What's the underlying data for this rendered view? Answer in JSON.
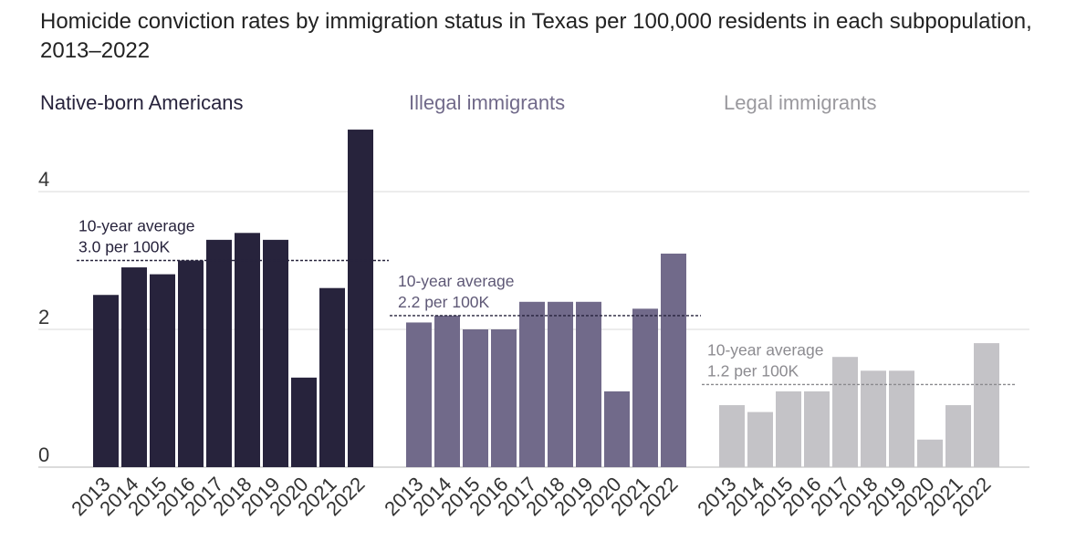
{
  "title": "Homicide conviction rates by immigration status in Texas per 100,000 residents in each subpopulation, 2013–2022",
  "chart_data": {
    "type": "bar",
    "title": "Homicide conviction rates by immigration status in Texas per 100,000 residents in each subpopulation, 2013–2022",
    "categories": [
      "2013",
      "2014",
      "2015",
      "2016",
      "2017",
      "2018",
      "2019",
      "2020",
      "2021",
      "2022"
    ],
    "yticks": [
      0,
      2,
      4
    ],
    "ylim": [
      0,
      5.0
    ],
    "grid": true,
    "panels": [
      {
        "name": "Native-born Americans",
        "color": "#27233c",
        "values": [
          2.5,
          2.9,
          2.8,
          3.0,
          3.3,
          3.4,
          3.3,
          1.3,
          2.6,
          4.9
        ],
        "average": {
          "value": 3.0,
          "line1": "10-year average",
          "line2": "3.0 per 100K"
        }
      },
      {
        "name": "Illegal immigrants",
        "color": "#716a8a",
        "values": [
          2.1,
          2.2,
          2.0,
          2.0,
          2.4,
          2.4,
          2.4,
          1.1,
          2.3,
          3.1
        ],
        "average": {
          "value": 2.2,
          "line1": "10-year average",
          "line2": "2.2 per 100K"
        }
      },
      {
        "name": "Legal immigrants",
        "color": "#c4c3c7",
        "values": [
          0.9,
          0.8,
          1.1,
          1.1,
          1.6,
          1.4,
          1.4,
          0.4,
          0.9,
          1.8
        ],
        "average": {
          "value": 1.2,
          "line1": "10-year average",
          "line2": "1.2 per 100K"
        }
      }
    ]
  }
}
